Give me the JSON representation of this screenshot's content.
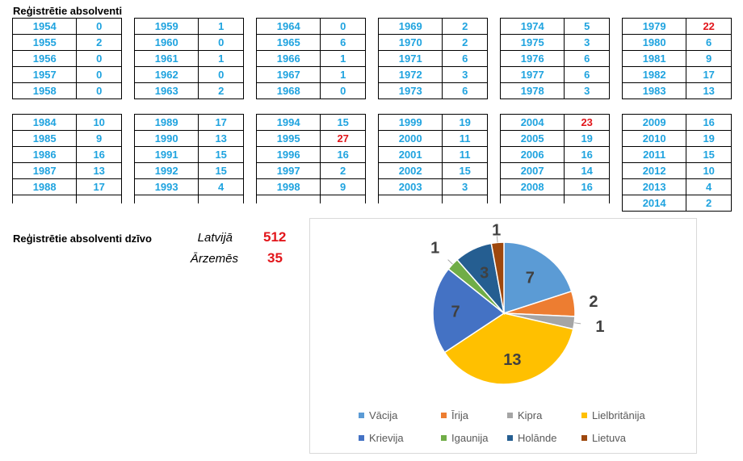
{
  "title": "Reģistrētie absolventi",
  "tables": [
    [
      [
        "1954",
        "0"
      ],
      [
        "1955",
        "2"
      ],
      [
        "1956",
        "0"
      ],
      [
        "1957",
        "0"
      ],
      [
        "1958",
        "0"
      ]
    ],
    [
      [
        "1959",
        "1"
      ],
      [
        "1960",
        "0"
      ],
      [
        "1961",
        "1"
      ],
      [
        "1962",
        "0"
      ],
      [
        "1963",
        "2"
      ]
    ],
    [
      [
        "1964",
        "0"
      ],
      [
        "1965",
        "6"
      ],
      [
        "1966",
        "1"
      ],
      [
        "1967",
        "1"
      ],
      [
        "1968",
        "0"
      ]
    ],
    [
      [
        "1969",
        "2"
      ],
      [
        "1970",
        "2"
      ],
      [
        "1971",
        "6"
      ],
      [
        "1972",
        "3"
      ],
      [
        "1973",
        "6"
      ]
    ],
    [
      [
        "1974",
        "5"
      ],
      [
        "1975",
        "3"
      ],
      [
        "1976",
        "6"
      ],
      [
        "1977",
        "6"
      ],
      [
        "1978",
        "3"
      ]
    ],
    [
      [
        "1979",
        "22"
      ],
      [
        "1980",
        "6"
      ],
      [
        "1981",
        "9"
      ],
      [
        "1982",
        "17"
      ],
      [
        "1983",
        "13"
      ]
    ],
    [
      [
        "1984",
        "10"
      ],
      [
        "1985",
        "9"
      ],
      [
        "1986",
        "16"
      ],
      [
        "1987",
        "13"
      ],
      [
        "1988",
        "17"
      ]
    ],
    [
      [
        "1989",
        "17"
      ],
      [
        "1990",
        "13"
      ],
      [
        "1991",
        "15"
      ],
      [
        "1992",
        "15"
      ],
      [
        "1993",
        "4"
      ]
    ],
    [
      [
        "1994",
        "15"
      ],
      [
        "1995",
        "27"
      ],
      [
        "1996",
        "16"
      ],
      [
        "1997",
        "2"
      ],
      [
        "1998",
        "9"
      ]
    ],
    [
      [
        "1999",
        "19"
      ],
      [
        "2000",
        "11"
      ],
      [
        "2001",
        "11"
      ],
      [
        "2002",
        "15"
      ],
      [
        "2003",
        "3"
      ]
    ],
    [
      [
        "2004",
        "23"
      ],
      [
        "2005",
        "19"
      ],
      [
        "2006",
        "16"
      ],
      [
        "2007",
        "14"
      ],
      [
        "2008",
        "16"
      ]
    ],
    [
      [
        "2009",
        "16"
      ],
      [
        "2010",
        "19"
      ],
      [
        "2011",
        "15"
      ],
      [
        "2012",
        "10"
      ],
      [
        "2013",
        "4"
      ],
      [
        "2014",
        "2"
      ]
    ]
  ],
  "highlighted_years": [
    "1979",
    "1995",
    "2004"
  ],
  "colors": {
    "year_text": "#1fa3df",
    "highlight_text": "#e2161b",
    "count_text": "#e2161b"
  },
  "lives": {
    "label": "Reģistrētie absolventi dzīvo",
    "rows": [
      {
        "country": "Latvijā",
        "count": "512"
      },
      {
        "country": "Ārzemēs",
        "count": "35"
      }
    ]
  },
  "chart_data": {
    "type": "pie",
    "categories": [
      "Vācija",
      "Īrija",
      "Kipra",
      "Lielbritānija",
      "Krievija",
      "Igaunija",
      "Holānde",
      "Lietuva"
    ],
    "values": [
      7,
      2,
      1,
      13,
      7,
      1,
      3,
      1
    ],
    "labels": [
      "7",
      "2",
      "1",
      "13",
      "7",
      "1",
      "3",
      "1"
    ],
    "colors": [
      "#5b9bd5",
      "#ed7d31",
      "#a5a5a5",
      "#ffc000",
      "#4472c4",
      "#70ad47",
      "#255e91",
      "#9e480e"
    ],
    "legend": "bottom"
  }
}
